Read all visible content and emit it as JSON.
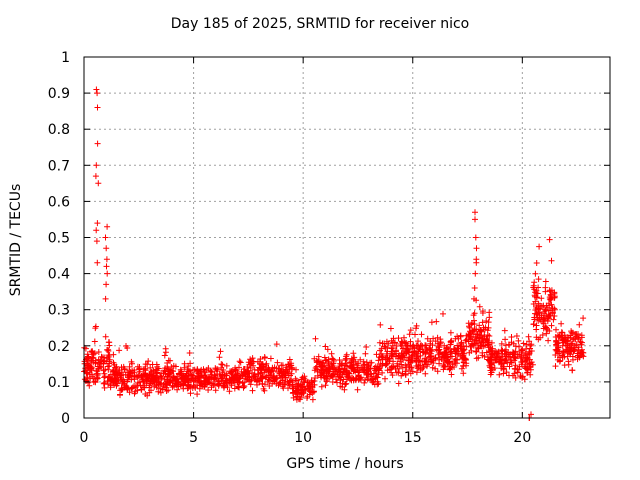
{
  "chart_data": {
    "type": "scatter",
    "title": "Day 185 of 2025, SRMTID for receiver nico",
    "xlabel": "GPS time / hours",
    "ylabel": "SRMTID / TECUs",
    "xlim": [
      0,
      24
    ],
    "ylim": [
      0,
      1
    ],
    "xticks": [
      0,
      5,
      10,
      15,
      20
    ],
    "yticks": [
      0,
      0.1,
      0.2,
      0.3,
      0.4,
      0.5,
      0.6,
      0.7,
      0.8,
      0.9,
      1
    ],
    "grid": true,
    "marker": "+",
    "colors": {
      "points": "#ff0000",
      "grid": "#a0a0a0",
      "axis": "#000000"
    },
    "highlights": [
      {
        "x": 0.6,
        "values": [
          0.91,
          0.9,
          0.86,
          0.76,
          0.7,
          0.67,
          0.65,
          0.54,
          0.52,
          0.49,
          0.43
        ]
      },
      {
        "x": 1.0,
        "values": [
          0.53,
          0.5,
          0.47,
          0.44,
          0.42,
          0.4,
          0.37,
          0.33
        ]
      },
      {
        "x": 17.85,
        "values": [
          0.57,
          0.55,
          0.5,
          0.47,
          0.44,
          0.43,
          0.4,
          0.36,
          0.33
        ]
      },
      {
        "x": 20.35,
        "values": [
          0.01,
          0.0,
          0.0
        ]
      }
    ],
    "segments": [
      {
        "x0": 0.0,
        "x1": 0.4,
        "base": 0.14,
        "spread": 0.07,
        "count": 50
      },
      {
        "x0": 0.4,
        "x1": 1.2,
        "base": 0.14,
        "spread": 0.1,
        "count": 70
      },
      {
        "x0": 1.2,
        "x1": 4.0,
        "base": 0.11,
        "spread": 0.06,
        "count": 260
      },
      {
        "x0": 4.0,
        "x1": 7.5,
        "base": 0.11,
        "spread": 0.055,
        "count": 300
      },
      {
        "x0": 7.5,
        "x1": 9.5,
        "base": 0.12,
        "spread": 0.06,
        "count": 170
      },
      {
        "x0": 9.5,
        "x1": 10.5,
        "base": 0.08,
        "spread": 0.05,
        "count": 90
      },
      {
        "x0": 10.5,
        "x1": 13.5,
        "base": 0.13,
        "spread": 0.06,
        "count": 260
      },
      {
        "x0": 13.5,
        "x1": 16.0,
        "base": 0.17,
        "spread": 0.08,
        "count": 230
      },
      {
        "x0": 16.0,
        "x1": 17.5,
        "base": 0.18,
        "spread": 0.08,
        "count": 140
      },
      {
        "x0": 17.5,
        "x1": 18.5,
        "base": 0.22,
        "spread": 0.08,
        "count": 110
      },
      {
        "x0": 18.5,
        "x1": 20.5,
        "base": 0.16,
        "spread": 0.07,
        "count": 180
      },
      {
        "x0": 20.5,
        "x1": 21.5,
        "base": 0.3,
        "spread": 0.12,
        "count": 110
      },
      {
        "x0": 21.5,
        "x1": 22.8,
        "base": 0.2,
        "spread": 0.08,
        "count": 130
      }
    ]
  }
}
